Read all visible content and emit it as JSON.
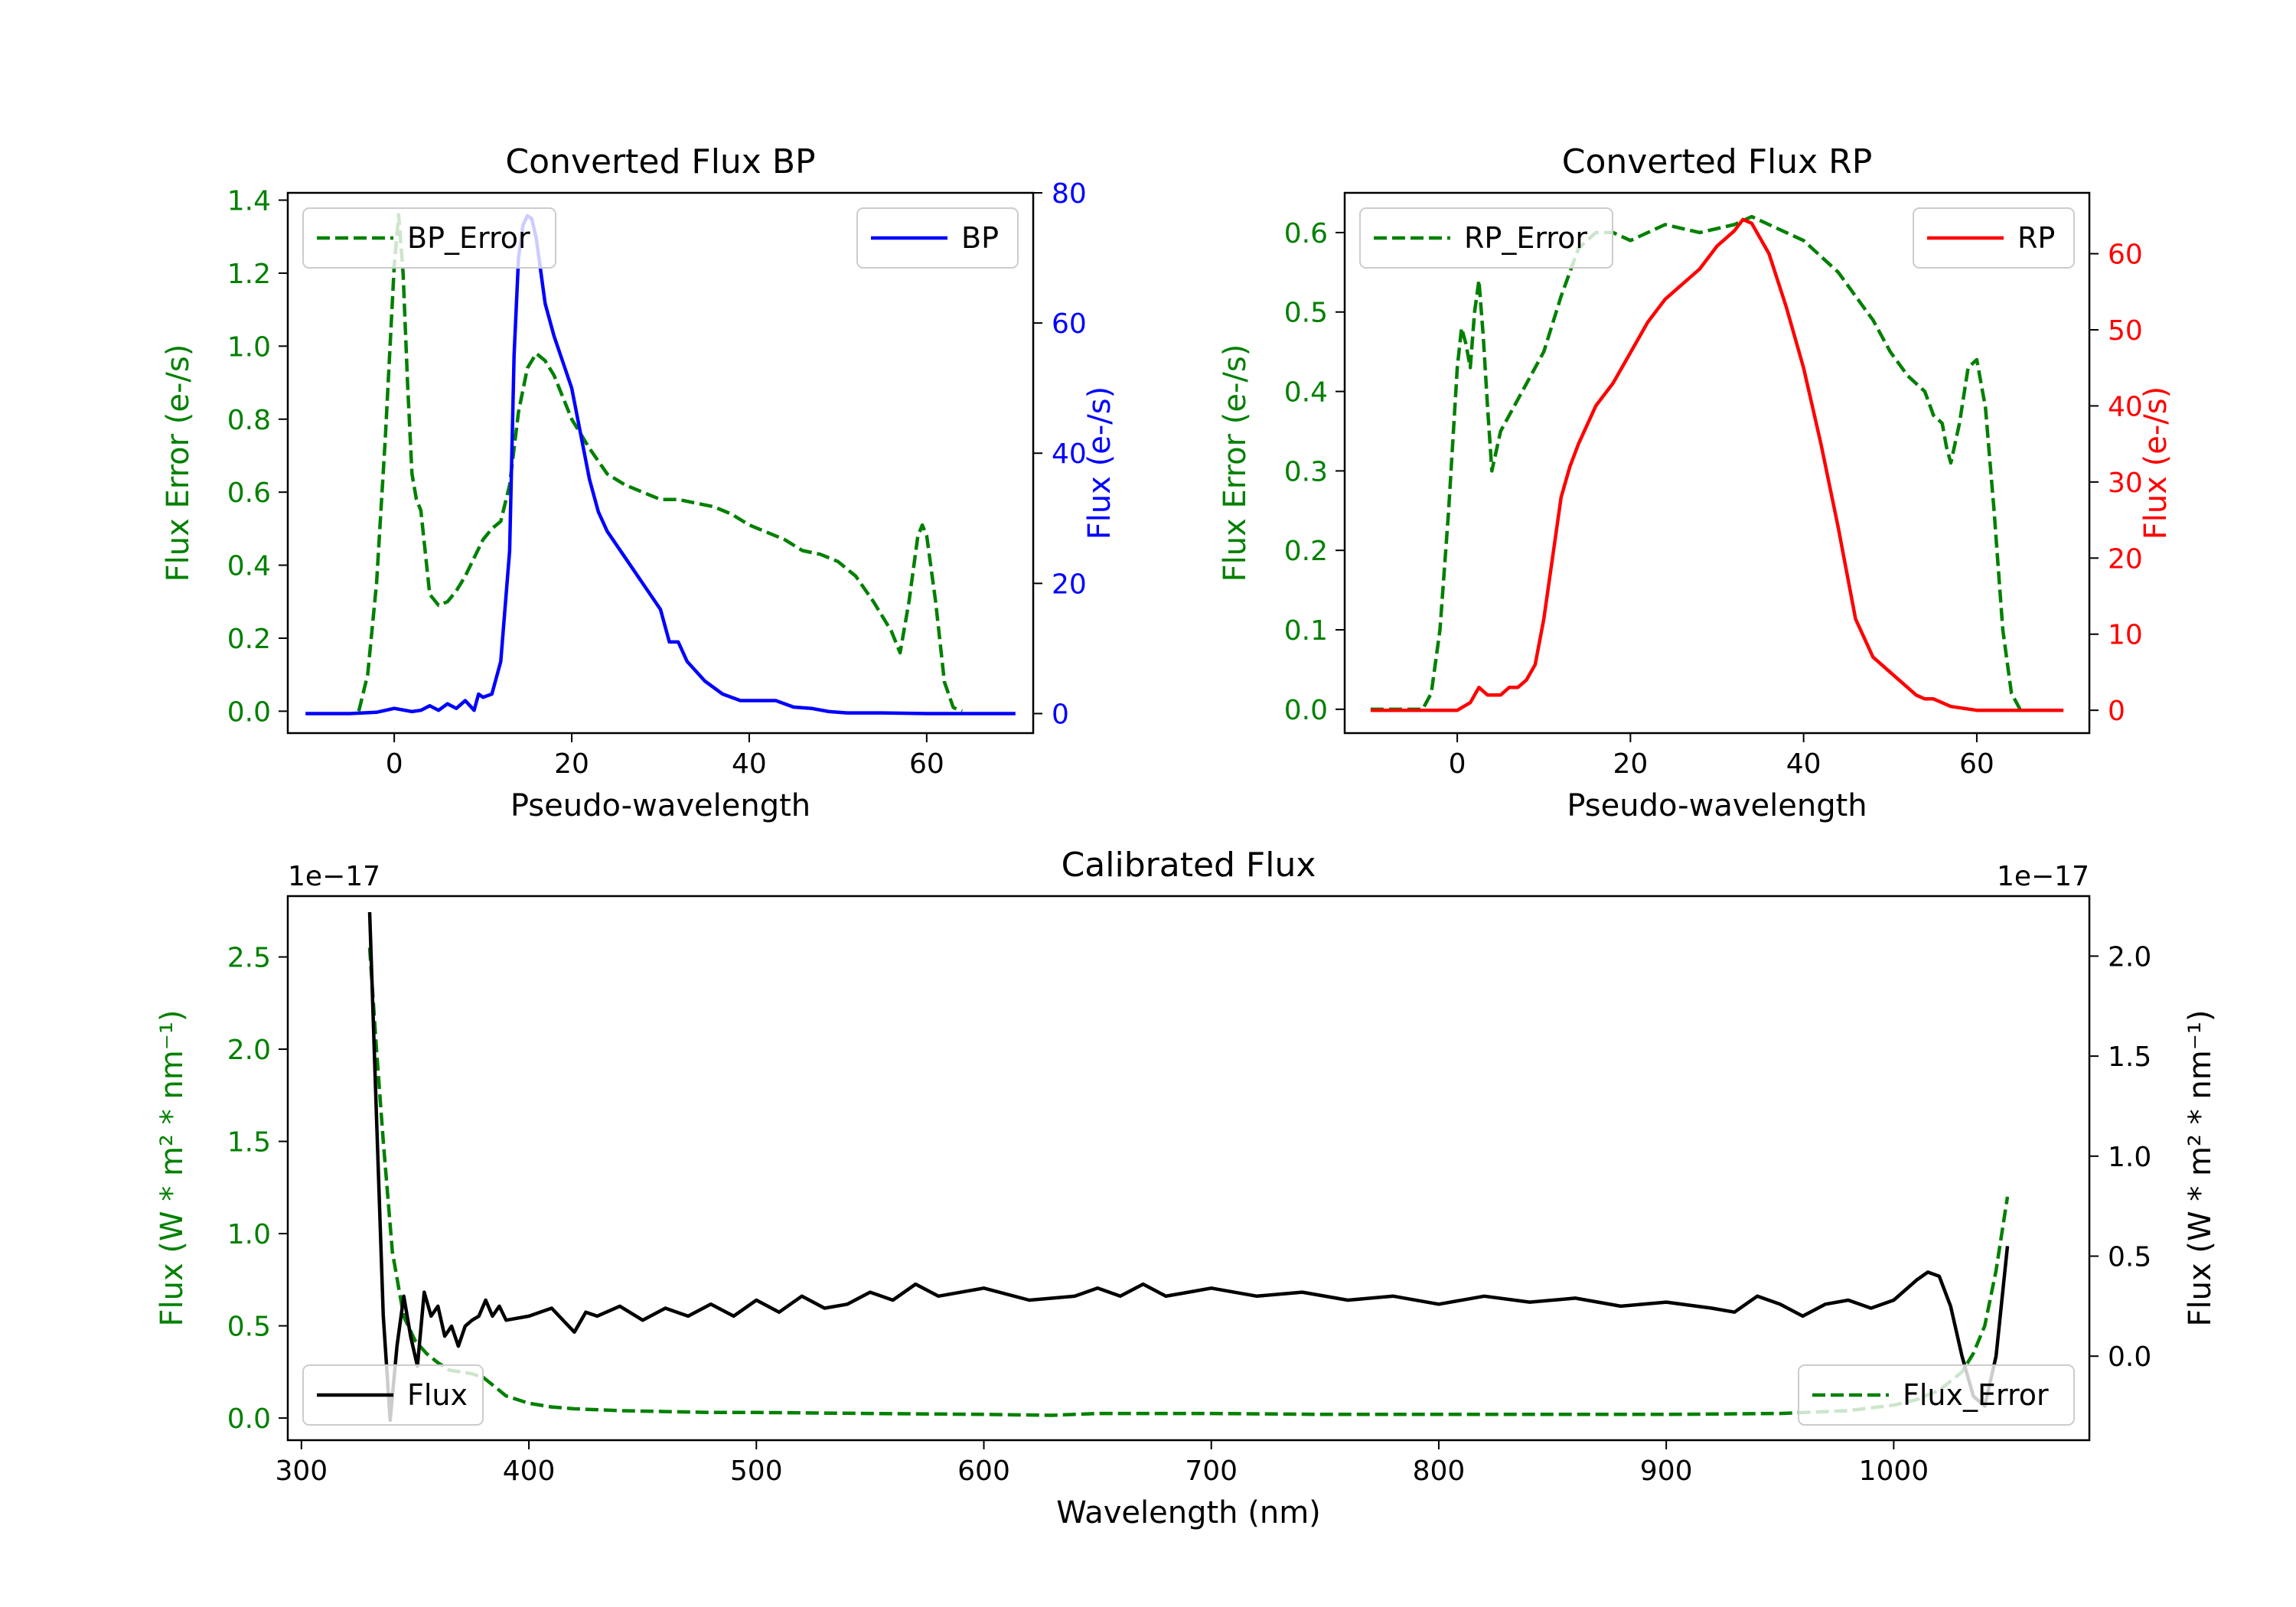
{
  "chart_data": [
    {
      "id": "bp",
      "type": "line",
      "title": "Converted Flux BP",
      "xlabel": "Pseudo-wavelength",
      "xlim": [
        -12,
        72
      ],
      "xticks": [
        "0",
        "20",
        "40",
        "60"
      ],
      "left_axis": {
        "label": "Flux Error (e-/s)",
        "color": "#008000",
        "ylim": [
          -0.06,
          1.42
        ],
        "ticks": [
          "0.0",
          "0.2",
          "0.4",
          "0.6",
          "0.8",
          "1.0",
          "1.2",
          "1.4"
        ]
      },
      "right_axis": {
        "label": "Flux (e-/s)",
        "color": "#0000ff",
        "ylim": [
          -3,
          80
        ],
        "ticks": [
          "0",
          "20",
          "40",
          "60",
          "80"
        ]
      },
      "series": [
        {
          "name": "BP_Error",
          "axis": "left",
          "style": "dashed",
          "color": "#008000",
          "x": [
            -4,
            -3,
            -2,
            -1,
            0,
            0.5,
            1,
            1.5,
            2,
            2.5,
            3,
            4,
            5,
            6,
            7,
            8,
            9,
            10,
            11,
            12,
            13,
            14,
            15,
            16,
            17,
            18,
            19,
            20,
            22,
            24,
            26,
            28,
            30,
            32,
            34,
            36,
            38,
            40,
            42,
            44,
            46,
            48,
            50,
            52,
            54,
            56,
            57,
            58,
            59,
            59.5,
            60,
            61,
            62,
            63,
            64
          ],
          "values": [
            0.0,
            0.1,
            0.35,
            0.75,
            1.22,
            1.36,
            1.2,
            0.9,
            0.65,
            0.58,
            0.55,
            0.32,
            0.29,
            0.3,
            0.33,
            0.37,
            0.42,
            0.47,
            0.5,
            0.52,
            0.62,
            0.82,
            0.94,
            0.98,
            0.96,
            0.92,
            0.86,
            0.8,
            0.72,
            0.65,
            0.62,
            0.6,
            0.58,
            0.58,
            0.57,
            0.56,
            0.54,
            0.51,
            0.49,
            0.47,
            0.44,
            0.43,
            0.41,
            0.37,
            0.3,
            0.22,
            0.16,
            0.3,
            0.48,
            0.51,
            0.48,
            0.3,
            0.08,
            0.01,
            0.0
          ]
        },
        {
          "name": "BP",
          "axis": "right",
          "style": "solid",
          "color": "#0000ff",
          "x": [
            -10,
            -5,
            -2,
            0,
            2,
            3,
            4,
            5,
            6,
            7,
            8,
            9,
            9.5,
            10,
            11,
            12,
            13,
            13.5,
            14,
            14.5,
            15,
            15.5,
            16,
            16.5,
            17,
            18,
            19,
            20,
            21,
            22,
            23,
            24,
            26,
            28,
            30,
            31,
            32,
            33,
            35,
            37,
            39,
            41,
            43,
            45,
            47,
            49,
            51,
            55,
            60,
            65,
            70
          ],
          "values": [
            0,
            0,
            0.2,
            0.8,
            0.3,
            0.5,
            1.2,
            0.5,
            1.5,
            0.8,
            2,
            0.5,
            3,
            2.5,
            3,
            8,
            25,
            55,
            70,
            75,
            76.5,
            76,
            73,
            68,
            63,
            58,
            54,
            50,
            43,
            36,
            31,
            28,
            24,
            20,
            16,
            11,
            11,
            8,
            5,
            3,
            2,
            2,
            2,
            1,
            0.8,
            0.3,
            0.1,
            0.1,
            0,
            0,
            0
          ]
        }
      ],
      "legend": [
        {
          "label": "BP_Error",
          "position": "upper-left"
        },
        {
          "label": "BP",
          "position": "upper-right"
        }
      ]
    },
    {
      "id": "rp",
      "type": "line",
      "title": "Converted Flux RP",
      "xlabel": "Pseudo-wavelength",
      "xlim": [
        -13,
        73
      ],
      "xticks": [
        "0",
        "20",
        "40",
        "60"
      ],
      "left_axis": {
        "label": "Flux Error (e-/s)",
        "color": "#008000",
        "ylim": [
          -0.03,
          0.65
        ],
        "ticks": [
          "0.0",
          "0.1",
          "0.2",
          "0.3",
          "0.4",
          "0.5",
          "0.6"
        ]
      },
      "right_axis": {
        "label": "Flux (e-/s)",
        "color": "#ff0000",
        "ylim": [
          -3,
          68
        ],
        "ticks": [
          "0",
          "10",
          "20",
          "30",
          "40",
          "50",
          "60"
        ]
      },
      "series": [
        {
          "name": "RP_Error",
          "axis": "left",
          "style": "dashed",
          "color": "#008000",
          "x": [
            -10,
            -4,
            -3,
            -2,
            -1,
            0,
            0.5,
            1,
            1.5,
            2,
            2.5,
            3,
            3.5,
            4,
            5,
            6,
            8,
            10,
            12,
            14,
            16,
            18,
            20,
            24,
            28,
            32,
            34,
            36,
            38,
            40,
            42,
            44,
            46,
            48,
            50,
            52,
            54,
            55,
            56,
            56.5,
            57,
            58,
            59,
            60,
            61,
            62,
            63,
            64,
            65
          ],
          "values": [
            0.0,
            0.0,
            0.02,
            0.1,
            0.25,
            0.43,
            0.48,
            0.46,
            0.43,
            0.5,
            0.54,
            0.47,
            0.38,
            0.3,
            0.35,
            0.37,
            0.41,
            0.45,
            0.52,
            0.58,
            0.6,
            0.6,
            0.59,
            0.61,
            0.6,
            0.61,
            0.62,
            0.61,
            0.6,
            0.59,
            0.57,
            0.55,
            0.52,
            0.49,
            0.45,
            0.42,
            0.4,
            0.37,
            0.36,
            0.33,
            0.31,
            0.36,
            0.43,
            0.44,
            0.38,
            0.25,
            0.1,
            0.02,
            0.0
          ]
        },
        {
          "name": "RP",
          "axis": "right",
          "style": "solid",
          "color": "#ff0000",
          "x": [
            -10,
            -5,
            0,
            1.5,
            2.5,
            3.5,
            5,
            6,
            7,
            8,
            9,
            10,
            11,
            12,
            13,
            14,
            16,
            18,
            20,
            22,
            24,
            26,
            28,
            30,
            32,
            33,
            34,
            36,
            38,
            40,
            42,
            44,
            46,
            48,
            50,
            51,
            52,
            53,
            54,
            55,
            57,
            60,
            65,
            70
          ],
          "values": [
            0,
            0,
            0,
            1,
            3,
            2,
            2,
            3,
            3,
            4,
            6,
            12,
            20,
            28,
            32,
            35,
            40,
            43,
            47,
            51,
            54,
            56,
            58,
            61,
            63,
            64.5,
            64,
            60,
            53,
            45,
            35,
            24,
            12,
            7,
            5,
            4,
            3,
            2,
            1.5,
            1.5,
            0.5,
            0,
            0,
            0
          ]
        }
      ],
      "legend": [
        {
          "label": "RP_Error",
          "position": "upper-left"
        },
        {
          "label": "RP",
          "position": "upper-right"
        }
      ]
    },
    {
      "id": "cal",
      "type": "line",
      "title": "Calibrated Flux",
      "xlabel": "Wavelength (nm)",
      "xlim": [
        294,
        1086
      ],
      "xticks": [
        "300",
        "400",
        "500",
        "600",
        "700",
        "800",
        "900",
        "1000"
      ],
      "left_axis": {
        "label": "Flux (W * m² * nm⁻¹)",
        "color": "#008000",
        "ylim": [
          -0.12,
          2.83
        ],
        "ticks": [
          "0.0",
          "0.5",
          "1.0",
          "1.5",
          "2.0",
          "2.5"
        ],
        "offset": "1e−17"
      },
      "right_axis": {
        "label": "Flux (W * m² * nm⁻¹)",
        "color": "#000000",
        "ylim": [
          -0.42,
          2.3
        ],
        "ticks": [
          "0.0",
          "0.5",
          "1.0",
          "1.5",
          "2.0"
        ],
        "offset": "1e−17"
      },
      "series": [
        {
          "name": "Flux",
          "axis": "right",
          "style": "solid",
          "color": "#000000",
          "x": [
            330,
            333,
            336,
            339,
            342,
            345,
            348,
            351,
            354,
            357,
            360,
            363,
            366,
            369,
            372,
            375,
            378,
            381,
            384,
            387,
            390,
            400,
            410,
            420,
            425,
            430,
            440,
            450,
            460,
            470,
            480,
            490,
            500,
            510,
            520,
            530,
            540,
            550,
            560,
            570,
            580,
            600,
            620,
            640,
            650,
            660,
            670,
            680,
            690,
            700,
            720,
            740,
            760,
            780,
            800,
            820,
            840,
            860,
            880,
            900,
            920,
            930,
            940,
            950,
            960,
            970,
            980,
            990,
            1000,
            1010,
            1015,
            1020,
            1025,
            1030,
            1035,
            1040,
            1045,
            1050
          ],
          "values": [
            2.22,
            1.2,
            0.2,
            -0.32,
            0.05,
            0.3,
            0.1,
            -0.05,
            0.32,
            0.2,
            0.25,
            0.1,
            0.15,
            0.05,
            0.15,
            0.18,
            0.2,
            0.28,
            0.2,
            0.25,
            0.18,
            0.2,
            0.24,
            0.12,
            0.22,
            0.2,
            0.25,
            0.18,
            0.24,
            0.2,
            0.26,
            0.2,
            0.28,
            0.22,
            0.3,
            0.24,
            0.26,
            0.32,
            0.28,
            0.36,
            0.3,
            0.34,
            0.28,
            0.3,
            0.34,
            0.3,
            0.36,
            0.3,
            0.32,
            0.34,
            0.3,
            0.32,
            0.28,
            0.3,
            0.26,
            0.3,
            0.27,
            0.29,
            0.25,
            0.27,
            0.24,
            0.22,
            0.3,
            0.26,
            0.2,
            0.26,
            0.28,
            0.24,
            0.28,
            0.38,
            0.42,
            0.4,
            0.25,
            0.0,
            -0.2,
            -0.25,
            0.0,
            0.55
          ]
        },
        {
          "name": "Flux_Error",
          "axis": "left",
          "style": "dashed",
          "color": "#008000",
          "x": [
            330,
            333,
            336,
            340,
            345,
            350,
            355,
            360,
            365,
            370,
            375,
            380,
            385,
            390,
            400,
            410,
            420,
            440,
            460,
            480,
            500,
            550,
            600,
            630,
            640,
            650,
            700,
            750,
            800,
            850,
            900,
            950,
            980,
            1000,
            1010,
            1020,
            1030,
            1035,
            1040,
            1045,
            1050
          ],
          "values": [
            2.55,
            2.0,
            1.5,
            0.9,
            0.55,
            0.42,
            0.35,
            0.3,
            0.26,
            0.25,
            0.24,
            0.22,
            0.17,
            0.12,
            0.08,
            0.06,
            0.05,
            0.04,
            0.035,
            0.03,
            0.03,
            0.025,
            0.02,
            0.015,
            0.02,
            0.025,
            0.025,
            0.02,
            0.02,
            0.02,
            0.02,
            0.025,
            0.04,
            0.07,
            0.1,
            0.15,
            0.25,
            0.35,
            0.5,
            0.8,
            1.2
          ]
        }
      ],
      "legend": [
        {
          "label": "Flux",
          "position": "lower-left"
        },
        {
          "label": "Flux_Error",
          "position": "lower-right"
        }
      ]
    }
  ]
}
